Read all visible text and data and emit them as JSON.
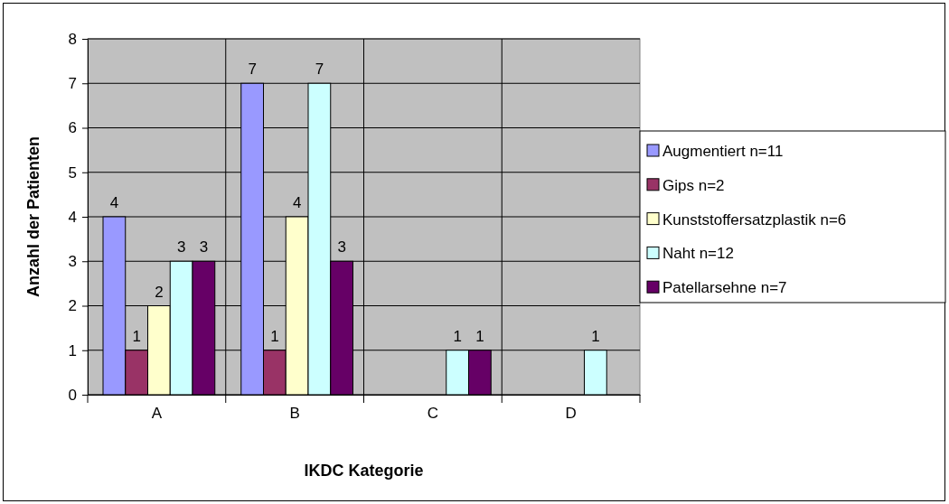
{
  "chart_data": {
    "type": "bar",
    "xlabel": "IKDC Kategorie",
    "ylabel": "Anzahl der Patienten",
    "categories": [
      "A",
      "B",
      "C",
      "D"
    ],
    "series": [
      {
        "name": "Augmentiert n=11",
        "color": "#9999ff",
        "values": [
          4,
          7,
          0,
          0
        ],
        "value_labels": [
          "4",
          "7",
          null,
          null
        ]
      },
      {
        "name": "Gips n=2",
        "color": "#993366",
        "values": [
          1,
          1,
          0,
          0
        ],
        "value_labels": [
          "1",
          "1",
          null,
          null
        ]
      },
      {
        "name": "Kunststoffersatzplastik n=6",
        "color": "#ffffcc",
        "values": [
          2,
          4,
          0,
          0
        ],
        "value_labels": [
          "2",
          "4",
          null,
          null
        ]
      },
      {
        "name": "Naht n=12",
        "color": "#ccffff",
        "values": [
          3,
          7,
          1,
          1
        ],
        "value_labels": [
          "3",
          "7",
          "1",
          "1"
        ]
      },
      {
        "name": "Patellarsehne n=7",
        "color": "#660066",
        "values": [
          3,
          3,
          1,
          0
        ],
        "value_labels": [
          "3",
          "3",
          "1",
          null
        ]
      }
    ],
    "ylim": [
      0,
      8
    ],
    "yticks": [
      0,
      1,
      2,
      3,
      4,
      5,
      6,
      7,
      8
    ],
    "grid": true,
    "legend": "right"
  }
}
